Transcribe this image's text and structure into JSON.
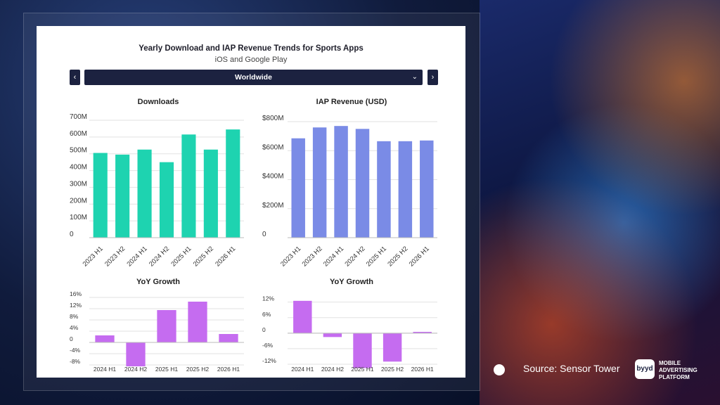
{
  "header": {
    "title": "Yearly Download and IAP Revenue Trends for Sports Apps",
    "subtitle": "iOS and Google Play"
  },
  "controls": {
    "prev_label": "‹",
    "next_label": "›",
    "region_selected": "Worldwide",
    "chevron_icon": "chevron-down-icon"
  },
  "footer": {
    "source": "Source: Sensor Tower",
    "logo_mark": "byyd",
    "logo_text_line1": "MOBILE",
    "logo_text_line2": "ADVERTISING",
    "logo_text_line3": "PLATFORM"
  },
  "colors": {
    "downloads": "#1ed3b0",
    "revenue": "#7a8be6",
    "growth": "#c56cf0"
  },
  "chart_data": [
    {
      "id": "downloads",
      "type": "bar",
      "title": "Downloads",
      "categories": [
        "2023 H1",
        "2023 H2",
        "2024 H1",
        "2024 H2",
        "2025 H1",
        "2025 H2",
        "2026 H1"
      ],
      "values": [
        505,
        495,
        525,
        450,
        615,
        525,
        645
      ],
      "ylim": [
        0,
        700
      ],
      "yticks": [
        0,
        100,
        200,
        300,
        400,
        500,
        600,
        700
      ],
      "ytick_labels": [
        "0",
        "100M",
        "200M",
        "300M",
        "400M",
        "500M",
        "600M",
        "700M"
      ],
      "grid": true
    },
    {
      "id": "revenue",
      "type": "bar",
      "title": "IAP Revenue (USD)",
      "categories": [
        "2023 H1",
        "2023 H2",
        "2024 H1",
        "2024 H2",
        "2025 H1",
        "2025 H2",
        "2026 H1"
      ],
      "values": [
        685,
        760,
        770,
        750,
        665,
        665,
        670
      ],
      "ylim": [
        0,
        800
      ],
      "yticks": [
        0,
        200,
        400,
        600,
        800
      ],
      "ytick_labels": [
        "0",
        "$200M",
        "$400M",
        "$600M",
        "$800M"
      ],
      "grid": true
    },
    {
      "id": "downloads_yoy",
      "type": "bar",
      "title": "YoY Growth",
      "categories": [
        "2024 H1",
        "2024 H2",
        "2025 H1",
        "2025 H2",
        "2026 H1"
      ],
      "values": [
        2.5,
        -8.5,
        11.5,
        14.5,
        3.0
      ],
      "ylim": [
        -10,
        16
      ],
      "yticks": [
        -8,
        -4,
        0,
        4,
        8,
        12,
        16
      ],
      "ytick_labels": [
        "-8%",
        "-4%",
        "0",
        "4%",
        "8%",
        "12%",
        "16%"
      ],
      "grid": true
    },
    {
      "id": "revenue_yoy",
      "type": "bar",
      "title": "YoY Growth",
      "categories": [
        "2024 H1",
        "2024 H2",
        "2025 H1",
        "2025 H2",
        "2026 H1"
      ],
      "values": [
        12.5,
        -1.5,
        -13.5,
        -11.0,
        0.5
      ],
      "ylim": [
        -15,
        13
      ],
      "yticks": [
        -12,
        -6,
        0,
        6,
        12
      ],
      "ytick_labels": [
        "-12%",
        "-6%",
        "0",
        "6%",
        "12%"
      ],
      "grid": true
    }
  ]
}
